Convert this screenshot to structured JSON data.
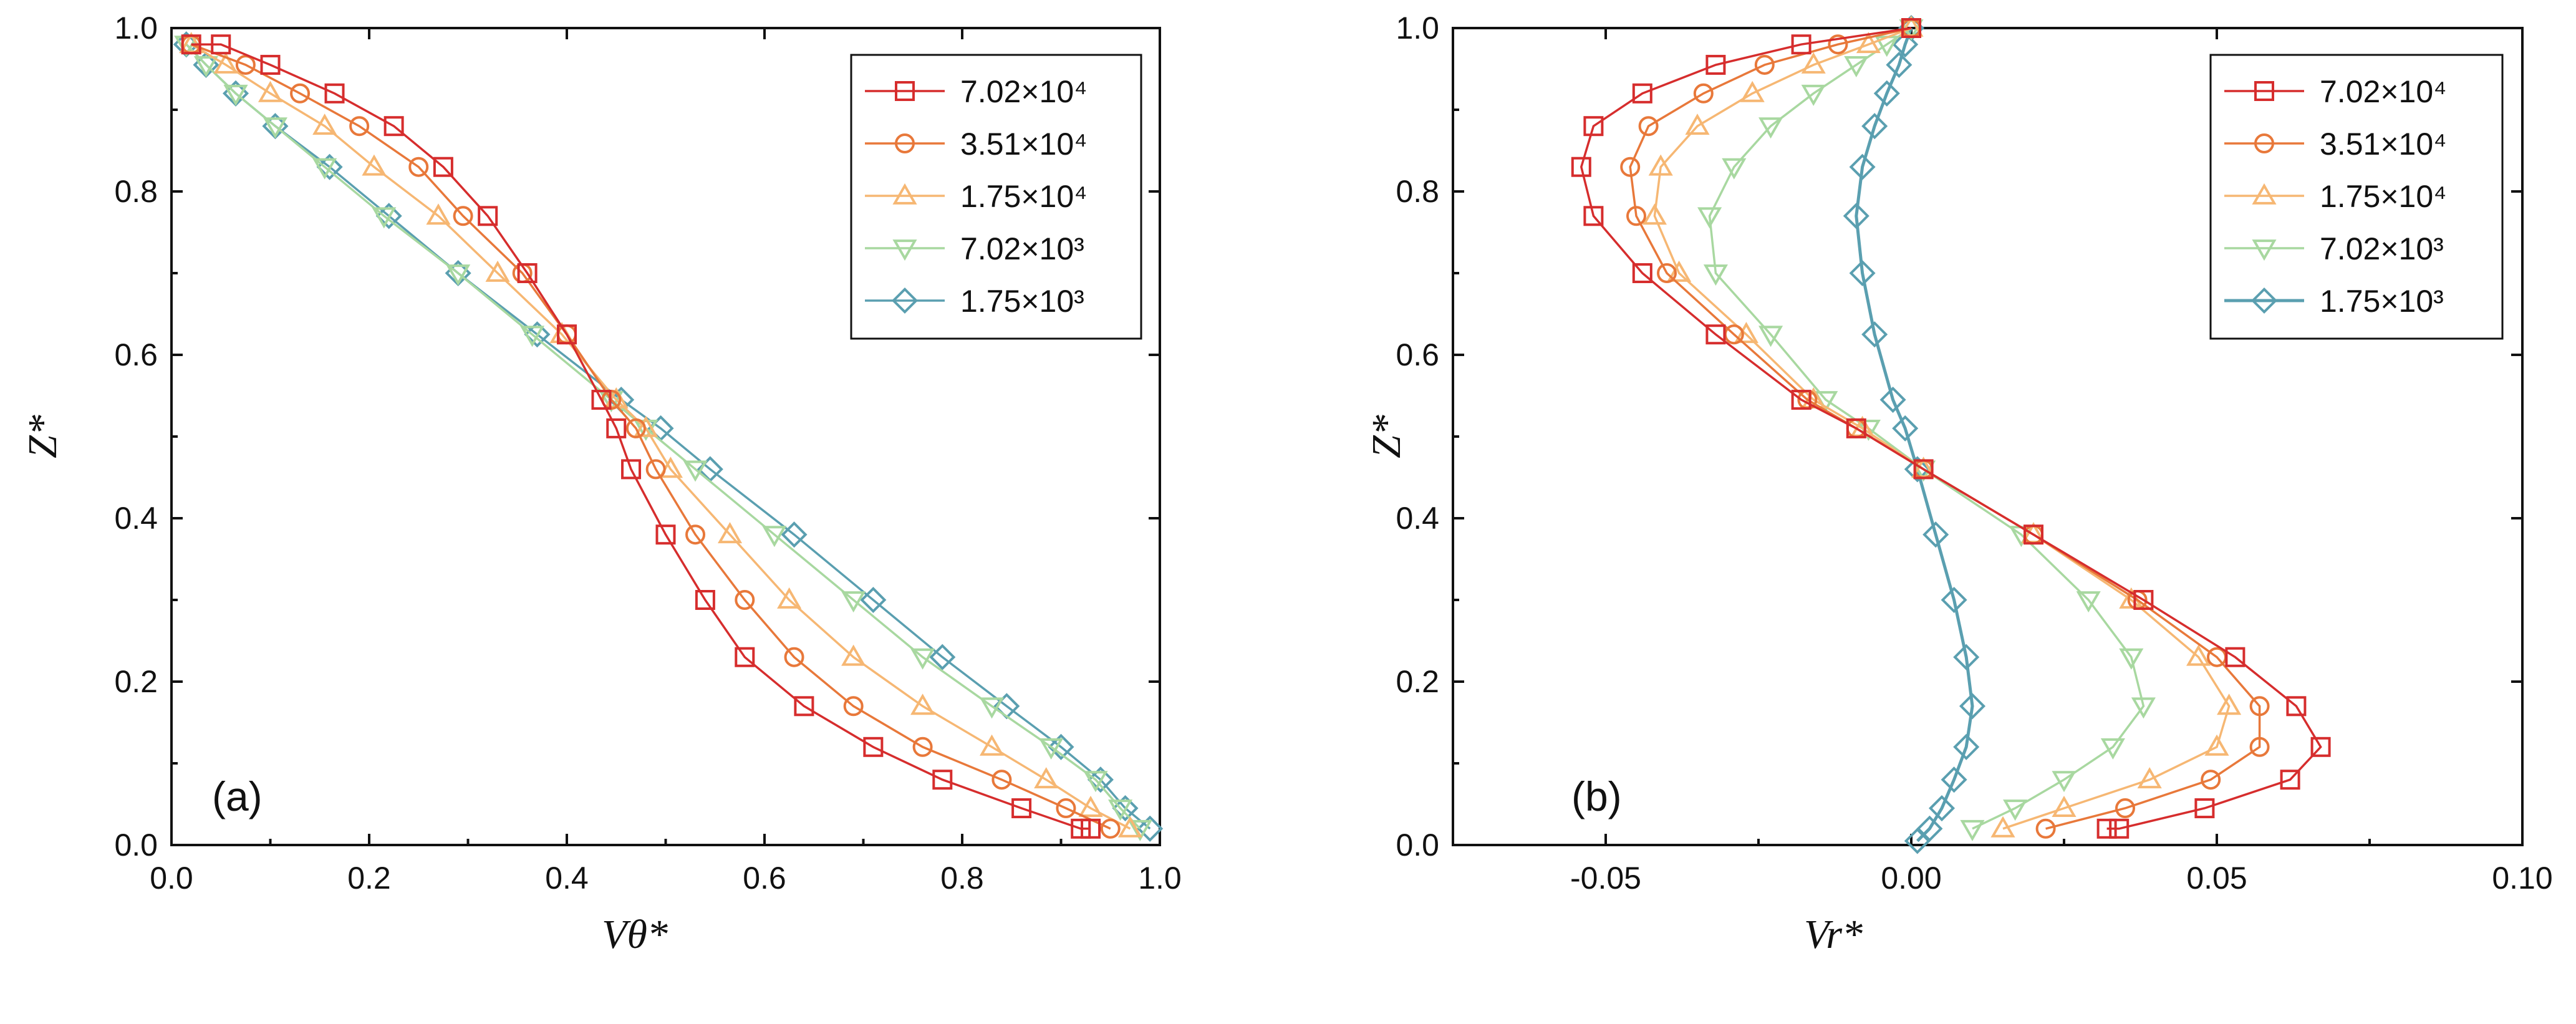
{
  "legend_entries": [
    "7.02×10⁴",
    "3.51×10⁴",
    "1.75×10⁴",
    "7.02×10³",
    "1.75×10³"
  ],
  "series_colors": [
    "#d62d2d",
    "#e8783a",
    "#f6b773",
    "#a8d8a0",
    "#5a9fb0"
  ],
  "series_markers": [
    "square",
    "circle",
    "triangle-up",
    "triangle-down",
    "diamond"
  ],
  "chart_data": [
    {
      "type": "line",
      "panel": "(a)",
      "xlabel": "Vθ*",
      "ylabel": "Z*",
      "xlim": [
        0.0,
        1.0
      ],
      "ylim": [
        0.0,
        1.0
      ],
      "xticks": [
        "0.0",
        "0.2",
        "0.4",
        "0.6",
        "0.8",
        "1.0"
      ],
      "yticks": [
        "0.0",
        "0.2",
        "0.4",
        "0.6",
        "0.8",
        "1.0"
      ],
      "legend_position": "top-right",
      "series": [
        {
          "name": "7.02×10⁴",
          "points": [
            [
              0.02,
              0.98
            ],
            [
              0.05,
              0.98
            ],
            [
              0.1,
              0.955
            ],
            [
              0.165,
              0.92
            ],
            [
              0.225,
              0.88
            ],
            [
              0.275,
              0.83
            ],
            [
              0.32,
              0.77
            ],
            [
              0.36,
              0.7
            ],
            [
              0.4,
              0.625
            ],
            [
              0.435,
              0.545
            ],
            [
              0.45,
              0.51
            ],
            [
              0.465,
              0.46
            ],
            [
              0.5,
              0.38
            ],
            [
              0.54,
              0.3
            ],
            [
              0.58,
              0.23
            ],
            [
              0.64,
              0.17
            ],
            [
              0.71,
              0.12
            ],
            [
              0.78,
              0.08
            ],
            [
              0.86,
              0.045
            ],
            [
              0.92,
              0.02
            ],
            [
              0.93,
              0.02
            ]
          ]
        },
        {
          "name": "3.51×10⁴",
          "points": [
            [
              0.02,
              0.98
            ],
            [
              0.075,
              0.955
            ],
            [
              0.13,
              0.92
            ],
            [
              0.19,
              0.88
            ],
            [
              0.25,
              0.83
            ],
            [
              0.295,
              0.77
            ],
            [
              0.355,
              0.7
            ],
            [
              0.4,
              0.625
            ],
            [
              0.445,
              0.545
            ],
            [
              0.47,
              0.51
            ],
            [
              0.49,
              0.46
            ],
            [
              0.53,
              0.38
            ],
            [
              0.58,
              0.3
            ],
            [
              0.63,
              0.23
            ],
            [
              0.69,
              0.17
            ],
            [
              0.76,
              0.12
            ],
            [
              0.84,
              0.08
            ],
            [
              0.905,
              0.045
            ],
            [
              0.95,
              0.02
            ]
          ]
        },
        {
          "name": "1.75×10⁴",
          "points": [
            [
              0.02,
              0.98
            ],
            [
              0.055,
              0.955
            ],
            [
              0.1,
              0.92
            ],
            [
              0.155,
              0.88
            ],
            [
              0.205,
              0.83
            ],
            [
              0.27,
              0.77
            ],
            [
              0.33,
              0.7
            ],
            [
              0.395,
              0.625
            ],
            [
              0.45,
              0.545
            ],
            [
              0.48,
              0.51
            ],
            [
              0.505,
              0.46
            ],
            [
              0.565,
              0.38
            ],
            [
              0.625,
              0.3
            ],
            [
              0.69,
              0.23
            ],
            [
              0.76,
              0.17
            ],
            [
              0.83,
              0.12
            ],
            [
              0.885,
              0.08
            ],
            [
              0.93,
              0.045
            ],
            [
              0.97,
              0.02
            ]
          ]
        },
        {
          "name": "7.02×10³",
          "points": [
            [
              0.015,
              0.98
            ],
            [
              0.035,
              0.955
            ],
            [
              0.065,
              0.92
            ],
            [
              0.105,
              0.88
            ],
            [
              0.155,
              0.83
            ],
            [
              0.215,
              0.77
            ],
            [
              0.29,
              0.7
            ],
            [
              0.365,
              0.625
            ],
            [
              0.445,
              0.545
            ],
            [
              0.48,
              0.51
            ],
            [
              0.53,
              0.46
            ],
            [
              0.61,
              0.38
            ],
            [
              0.69,
              0.3
            ],
            [
              0.76,
              0.23
            ],
            [
              0.83,
              0.17
            ],
            [
              0.89,
              0.12
            ],
            [
              0.935,
              0.08
            ],
            [
              0.96,
              0.045
            ],
            [
              0.98,
              0.02
            ]
          ]
        },
        {
          "name": "1.75×10³",
          "points": [
            [
              0.015,
              0.98
            ],
            [
              0.035,
              0.955
            ],
            [
              0.065,
              0.92
            ],
            [
              0.105,
              0.88
            ],
            [
              0.16,
              0.83
            ],
            [
              0.22,
              0.77
            ],
            [
              0.29,
              0.7
            ],
            [
              0.37,
              0.625
            ],
            [
              0.455,
              0.545
            ],
            [
              0.495,
              0.51
            ],
            [
              0.545,
              0.46
            ],
            [
              0.63,
              0.38
            ],
            [
              0.71,
              0.3
            ],
            [
              0.78,
              0.23
            ],
            [
              0.845,
              0.17
            ],
            [
              0.9,
              0.12
            ],
            [
              0.94,
              0.08
            ],
            [
              0.965,
              0.045
            ],
            [
              0.99,
              0.02
            ]
          ]
        }
      ]
    },
    {
      "type": "line",
      "panel": "(b)",
      "xlabel": "Vr*",
      "ylabel": "Z*",
      "xlim": [
        -0.075,
        0.1
      ],
      "ylim": [
        0.0,
        1.0
      ],
      "xticks": [
        "-0.05",
        "0.00",
        "0.05",
        "0.10"
      ],
      "yticks": [
        "0.0",
        "0.2",
        "0.4",
        "0.6",
        "0.8",
        "1.0"
      ],
      "legend_position": "top-right",
      "series": [
        {
          "name": "7.02×10⁴",
          "points": [
            [
              0.0,
              1.0
            ],
            [
              -0.018,
              0.98
            ],
            [
              -0.032,
              0.955
            ],
            [
              -0.044,
              0.92
            ],
            [
              -0.052,
              0.88
            ],
            [
              -0.054,
              0.83
            ],
            [
              -0.052,
              0.77
            ],
            [
              -0.044,
              0.7
            ],
            [
              -0.032,
              0.625
            ],
            [
              -0.018,
              0.545
            ],
            [
              -0.009,
              0.51
            ],
            [
              0.002,
              0.46
            ],
            [
              0.02,
              0.38
            ],
            [
              0.038,
              0.3
            ],
            [
              0.053,
              0.23
            ],
            [
              0.063,
              0.17
            ],
            [
              0.067,
              0.12
            ],
            [
              0.062,
              0.08
            ],
            [
              0.048,
              0.045
            ],
            [
              0.034,
              0.02
            ],
            [
              0.032,
              0.02
            ]
          ]
        },
        {
          "name": "3.51×10⁴",
          "points": [
            [
              0.0,
              1.0
            ],
            [
              -0.012,
              0.98
            ],
            [
              -0.024,
              0.955
            ],
            [
              -0.034,
              0.92
            ],
            [
              -0.043,
              0.88
            ],
            [
              -0.046,
              0.83
            ],
            [
              -0.045,
              0.77
            ],
            [
              -0.04,
              0.7
            ],
            [
              -0.029,
              0.625
            ],
            [
              -0.017,
              0.545
            ],
            [
              -0.009,
              0.51
            ],
            [
              0.002,
              0.46
            ],
            [
              0.02,
              0.38
            ],
            [
              0.037,
              0.3
            ],
            [
              0.05,
              0.23
            ],
            [
              0.057,
              0.17
            ],
            [
              0.057,
              0.12
            ],
            [
              0.049,
              0.08
            ],
            [
              0.035,
              0.045
            ],
            [
              0.022,
              0.02
            ]
          ]
        },
        {
          "name": "1.75×10⁴",
          "points": [
            [
              0.0,
              1.0
            ],
            [
              -0.007,
              0.98
            ],
            [
              -0.016,
              0.955
            ],
            [
              -0.026,
              0.92
            ],
            [
              -0.035,
              0.88
            ],
            [
              -0.041,
              0.83
            ],
            [
              -0.042,
              0.77
            ],
            [
              -0.038,
              0.7
            ],
            [
              -0.027,
              0.625
            ],
            [
              -0.016,
              0.545
            ],
            [
              -0.008,
              0.51
            ],
            [
              0.002,
              0.46
            ],
            [
              0.02,
              0.38
            ],
            [
              0.036,
              0.3
            ],
            [
              0.047,
              0.23
            ],
            [
              0.052,
              0.17
            ],
            [
              0.05,
              0.12
            ],
            [
              0.039,
              0.08
            ],
            [
              0.025,
              0.045
            ],
            [
              0.015,
              0.02
            ]
          ]
        },
        {
          "name": "7.02×10³",
          "points": [
            [
              0.0,
              1.0
            ],
            [
              -0.004,
              0.98
            ],
            [
              -0.009,
              0.955
            ],
            [
              -0.016,
              0.92
            ],
            [
              -0.023,
              0.88
            ],
            [
              -0.029,
              0.83
            ],
            [
              -0.033,
              0.77
            ],
            [
              -0.032,
              0.7
            ],
            [
              -0.023,
              0.625
            ],
            [
              -0.014,
              0.545
            ],
            [
              -0.007,
              0.51
            ],
            [
              0.002,
              0.46
            ],
            [
              0.018,
              0.38
            ],
            [
              0.029,
              0.3
            ],
            [
              0.036,
              0.23
            ],
            [
              0.038,
              0.17
            ],
            [
              0.033,
              0.12
            ],
            [
              0.025,
              0.08
            ],
            [
              0.017,
              0.045
            ],
            [
              0.01,
              0.02
            ]
          ]
        },
        {
          "name": "1.75×10³",
          "points": [
            [
              0.0,
              1.0
            ],
            [
              -0.001,
              0.98
            ],
            [
              -0.002,
              0.955
            ],
            [
              -0.004,
              0.92
            ],
            [
              -0.006,
              0.88
            ],
            [
              -0.008,
              0.83
            ],
            [
              -0.009,
              0.77
            ],
            [
              -0.008,
              0.7
            ],
            [
              -0.006,
              0.625
            ],
            [
              -0.003,
              0.545
            ],
            [
              -0.001,
              0.51
            ],
            [
              0.001,
              0.46
            ],
            [
              0.004,
              0.38
            ],
            [
              0.007,
              0.3
            ],
            [
              0.009,
              0.23
            ],
            [
              0.01,
              0.17
            ],
            [
              0.009,
              0.12
            ],
            [
              0.007,
              0.08
            ],
            [
              0.005,
              0.045
            ],
            [
              0.003,
              0.02
            ],
            [
              0.001,
              0.005
            ]
          ]
        }
      ]
    }
  ]
}
